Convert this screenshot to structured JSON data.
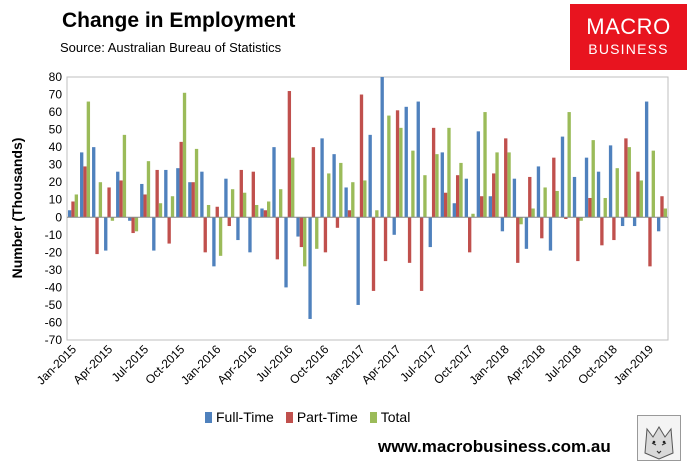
{
  "header": {
    "title": "Change in Employment",
    "subtitle": "Source: Australian Bureau of Statistics"
  },
  "brand": {
    "logo_line1": "MACRO",
    "logo_line2": "BUSINESS",
    "logo_color": "#e8141f",
    "website": "www.macrobusiness.com.au"
  },
  "legend": {
    "full_time": "Full-Time",
    "part_time": "Part-Time",
    "total": "Total"
  },
  "colors": {
    "full_time": "#4f81bd",
    "part_time": "#c0504d",
    "total": "#9bbb59"
  },
  "chart_data": {
    "type": "bar",
    "title": "Change in Employment",
    "ylabel": "Number (Thousands)",
    "xlabel": "",
    "ylim": [
      -70,
      80
    ],
    "yticks": [
      80,
      70,
      60,
      50,
      40,
      30,
      20,
      10,
      0,
      -10,
      -20,
      -30,
      -40,
      -50,
      -60,
      -70
    ],
    "grid": false,
    "legend_position": "bottom",
    "categories": [
      "Jan-2015",
      "Feb-2015",
      "Mar-2015",
      "Apr-2015",
      "May-2015",
      "Jun-2015",
      "Jul-2015",
      "Aug-2015",
      "Sep-2015",
      "Oct-2015",
      "Nov-2015",
      "Dec-2015",
      "Jan-2016",
      "Feb-2016",
      "Mar-2016",
      "Apr-2016",
      "May-2016",
      "Jun-2016",
      "Jul-2016",
      "Aug-2016",
      "Sep-2016",
      "Oct-2016",
      "Nov-2016",
      "Dec-2016",
      "Jan-2017",
      "Feb-2017",
      "Mar-2017",
      "Apr-2017",
      "May-2017",
      "Jun-2017",
      "Jul-2017",
      "Aug-2017",
      "Sep-2017",
      "Oct-2017",
      "Nov-2017",
      "Dec-2017",
      "Jan-2018",
      "Feb-2018",
      "Mar-2018",
      "Apr-2018",
      "May-2018",
      "Jun-2018",
      "Jul-2018",
      "Aug-2018",
      "Sep-2018",
      "Oct-2018",
      "Nov-2018",
      "Dec-2018",
      "Jan-2019",
      "Feb-2019"
    ],
    "tick_labels": [
      "Jan-2015",
      "Apr-2015",
      "Jul-2015",
      "Oct-2015",
      "Jan-2016",
      "Apr-2016",
      "Jul-2016",
      "Oct-2016",
      "Jan-2017",
      "Apr-2017",
      "Jul-2017",
      "Oct-2017",
      "Jan-2018",
      "Apr-2018",
      "Jul-2018",
      "Oct-2018",
      "Jan-2019"
    ],
    "series": [
      {
        "name": "Full-Time",
        "values": [
          4,
          37,
          40,
          -19,
          26,
          -2,
          19,
          -19,
          27,
          28,
          20,
          26,
          -28,
          22,
          -13,
          -20,
          5,
          40,
          -40,
          -11,
          -58,
          45,
          36,
          17,
          -50,
          47,
          80,
          -10,
          63,
          66,
          -17,
          37,
          8,
          22,
          49,
          12,
          -8,
          22,
          -18,
          29,
          -19,
          46,
          23,
          34,
          26,
          41,
          -5,
          -5,
          66,
          -8
        ]
      },
      {
        "name": "Part-Time",
        "values": [
          9,
          29,
          -21,
          17,
          21,
          -9,
          13,
          27,
          -15,
          43,
          20,
          -20,
          6,
          -5,
          27,
          26,
          4,
          -24,
          72,
          -17,
          40,
          -20,
          -6,
          4,
          70,
          -42,
          -25,
          61,
          -26,
          -42,
          51,
          14,
          24,
          -20,
          12,
          25,
          45,
          -26,
          23,
          -12,
          34,
          -1,
          -25,
          11,
          -16,
          -13,
          45,
          26,
          -28,
          12
        ]
      },
      {
        "name": "Total",
        "values": [
          13,
          66,
          20,
          -2,
          47,
          -8,
          32,
          8,
          12,
          71,
          39,
          7,
          -22,
          16,
          14,
          7,
          9,
          16,
          34,
          -28,
          -18,
          25,
          31,
          20,
          21,
          4,
          58,
          51,
          38,
          24,
          36,
          51,
          31,
          2,
          60,
          37,
          37,
          -4,
          5,
          17,
          15,
          60,
          -2,
          44,
          11,
          28,
          40,
          21,
          38,
          5
        ]
      }
    ]
  }
}
